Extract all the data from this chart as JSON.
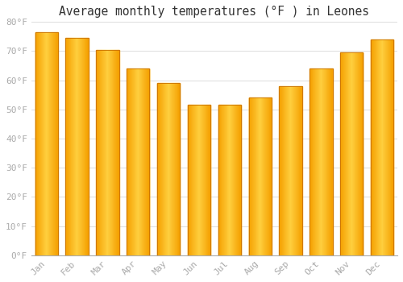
{
  "title": "Average monthly temperatures (°F ) in Leones",
  "months": [
    "Jan",
    "Feb",
    "Mar",
    "Apr",
    "May",
    "Jun",
    "Jul",
    "Aug",
    "Sep",
    "Oct",
    "Nov",
    "Dec"
  ],
  "values": [
    76.5,
    74.5,
    70.5,
    64.0,
    59.0,
    51.5,
    51.5,
    54.0,
    58.0,
    64.0,
    69.5,
    74.0
  ],
  "bar_color_left": "#F5A000",
  "bar_color_center": "#FFD040",
  "bar_color_right": "#F5A000",
  "bar_edge_color": "#C87000",
  "background_color": "#FFFFFF",
  "grid_color": "#DDDDDD",
  "ylim": [
    0,
    80
  ],
  "yticks": [
    0,
    10,
    20,
    30,
    40,
    50,
    60,
    70,
    80
  ],
  "ytick_labels": [
    "0°F",
    "10°F",
    "20°F",
    "30°F",
    "40°F",
    "50°F",
    "60°F",
    "70°F",
    "80°F"
  ],
  "title_fontsize": 10.5,
  "tick_fontsize": 8,
  "tick_color": "#AAAAAA",
  "title_color": "#333333"
}
